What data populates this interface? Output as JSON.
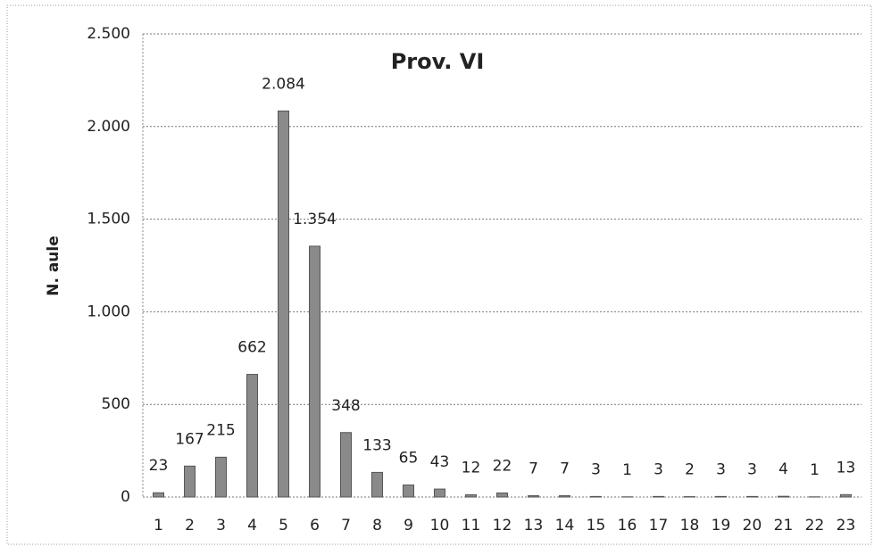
{
  "chart_data": {
    "type": "bar",
    "title": "Prov. VI",
    "y_label": "N. aule",
    "categories": [
      "1",
      "2",
      "3",
      "4",
      "5",
      "6",
      "7",
      "8",
      "9",
      "10",
      "11",
      "12",
      "13",
      "14",
      "15",
      "16",
      "17",
      "18",
      "19",
      "20",
      "21",
      "22",
      "23"
    ],
    "values": [
      23,
      167,
      215,
      662,
      2084,
      1354,
      348,
      133,
      65,
      43,
      12,
      22,
      7,
      7,
      3,
      1,
      3,
      2,
      3,
      3,
      4,
      1,
      13
    ],
    "value_labels": [
      "23",
      "167",
      "215",
      "662",
      "2.084",
      "1.354",
      "348",
      "133",
      "65",
      "43",
      "12",
      "22",
      "7",
      "7",
      "3",
      "1",
      "3",
      "2",
      "3",
      "3",
      "4",
      "1",
      "13"
    ],
    "color": "#8a8a8a",
    "ylim": [
      0,
      2500
    ],
    "yticks": [
      0,
      500,
      {
        "value": 1000,
        "label": "1.000"
      },
      {
        "value": 1500,
        "label": "1.500"
      },
      {
        "value": 2000,
        "label": "2.000"
      },
      {
        "value": 2500,
        "label": "2.500"
      }
    ],
    "grid": true
  }
}
